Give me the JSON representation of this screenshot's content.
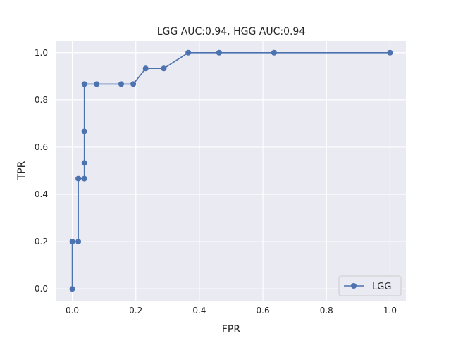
{
  "chart_data": {
    "type": "line",
    "title": "LGG AUC:0.94, HGG AUC:0.94",
    "xlabel": "FPR",
    "ylabel": "TPR",
    "xlim": [
      -0.05,
      1.05
    ],
    "ylim": [
      -0.05,
      1.05
    ],
    "xticks": [
      "0.0",
      "0.2",
      "0.4",
      "0.6",
      "0.8",
      "1.0"
    ],
    "yticks": [
      "0.0",
      "0.2",
      "0.4",
      "0.6",
      "0.8",
      "1.0"
    ],
    "grid": true,
    "legend_position": "lower-right",
    "series": [
      {
        "name": "LGG",
        "color": "#4c72b0",
        "marker": "circle",
        "x": [
          0.0,
          0.0,
          0.019,
          0.019,
          0.038,
          0.038,
          0.038,
          0.038,
          0.077,
          0.154,
          0.192,
          0.231,
          0.288,
          0.365,
          0.462,
          0.635,
          1.0
        ],
        "y": [
          0.0,
          0.2,
          0.2,
          0.467,
          0.467,
          0.533,
          0.667,
          0.867,
          0.867,
          0.867,
          0.867,
          0.933,
          0.933,
          1.0,
          1.0,
          1.0,
          1.0
        ]
      }
    ]
  }
}
